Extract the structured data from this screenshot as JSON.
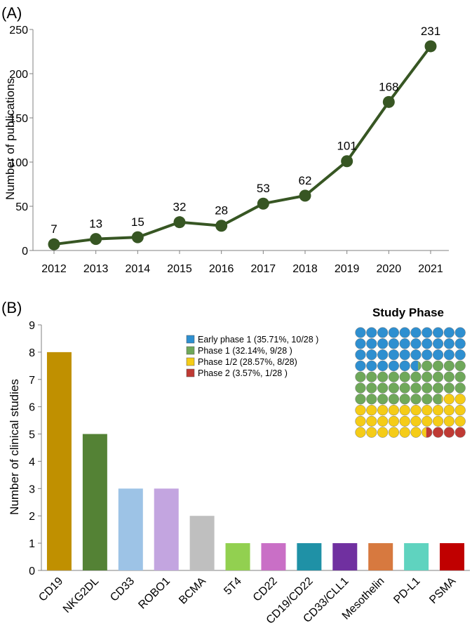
{
  "panel_a": {
    "label": "(A)"
  },
  "panel_b": {
    "label": "(B)"
  },
  "chart_data": [
    {
      "type": "line",
      "xlabel": "",
      "ylabel": "Number of publications",
      "x": [
        "2012",
        "2013",
        "2014",
        "2015",
        "2016",
        "2017",
        "2018",
        "2019",
        "2020",
        "2021"
      ],
      "values": [
        7,
        13,
        15,
        32,
        28,
        53,
        62,
        101,
        168,
        231
      ],
      "ylim": [
        0,
        250
      ],
      "yticks": [
        0,
        50,
        100,
        150,
        200,
        250
      ],
      "data_labels": [
        "7",
        "13",
        "15",
        "32",
        "28",
        "53",
        "62",
        "101",
        "168",
        "231"
      ],
      "color": "#375623",
      "grid": false
    },
    {
      "type": "bar",
      "xlabel": "",
      "ylabel": "Number of clinical studies",
      "categories": [
        "CD19",
        "NKG2DL",
        "CD33",
        "ROBO1",
        "BCMA",
        "5T4",
        "CD22",
        "CD19/CD22",
        "CD33/CLL1",
        "Mesothelin",
        "PD-L1",
        "PSMA"
      ],
      "values": [
        8,
        5,
        3,
        3,
        2,
        1,
        1,
        1,
        1,
        1,
        1,
        1
      ],
      "colors": [
        "#C09000",
        "#548235",
        "#9DC3E6",
        "#C3A5E0",
        "#BFBFBF",
        "#92D050",
        "#C96FC6",
        "#1F91A6",
        "#7030A0",
        "#D7793F",
        "#5FD3BF",
        "#C00000"
      ],
      "ylim": [
        0,
        9
      ],
      "yticks": [
        0,
        1,
        2,
        3,
        4,
        5,
        6,
        7,
        8,
        9
      ],
      "grid": false
    },
    {
      "type": "waffle",
      "title": "Study Phase",
      "rows": 10,
      "cols": 10,
      "legend_position": "left",
      "categories": [
        {
          "label": "Early phase 1 (35.71%, 10/28 )",
          "count": 10,
          "percent": 35.71,
          "color": "#2E8FD0"
        },
        {
          "label": "Phase 1 (32.14%, 9/28 )",
          "count": 9,
          "percent": 32.14,
          "color": "#6FA85A"
        },
        {
          "label": "Phase 1/2 (28.57%, 8/28)",
          "count": 8,
          "percent": 28.57,
          "color": "#F5CC17"
        },
        {
          "label": "Phase 2 (3.57%, 1/28 )",
          "count": 1,
          "percent": 3.57,
          "color": "#BF3A34"
        }
      ]
    }
  ]
}
